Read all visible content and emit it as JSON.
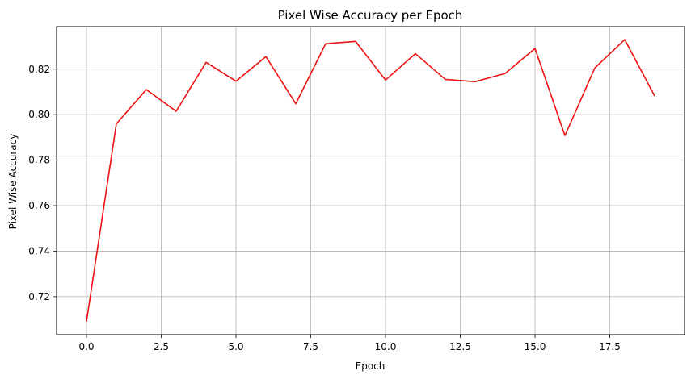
{
  "chart_data": {
    "type": "line",
    "title": "Pixel Wise Accuracy per Epoch",
    "xlabel": "Epoch",
    "ylabel": "Pixel Wise Accuracy",
    "xlim": [
      -1.0,
      20.0
    ],
    "ylim": [
      0.7033,
      0.8387
    ],
    "xticks": [
      0.0,
      2.5,
      5.0,
      7.5,
      10.0,
      12.5,
      15.0,
      17.5
    ],
    "xtick_labels": [
      "0.0",
      "2.5",
      "5.0",
      "7.5",
      "10.0",
      "12.5",
      "15.0",
      "17.5"
    ],
    "yticks": [
      0.72,
      0.74,
      0.76,
      0.78,
      0.8,
      0.82
    ],
    "ytick_labels": [
      "0.72",
      "0.74",
      "0.76",
      "0.78",
      "0.80",
      "0.82"
    ],
    "grid": true,
    "line_color": "#ee1111",
    "series": [
      {
        "x": [
          0,
          1,
          2,
          3,
          4,
          5,
          6,
          7,
          8,
          9,
          10,
          11,
          12,
          13,
          14,
          15,
          16,
          17,
          18,
          19
        ],
        "values": [
          0.709,
          0.796,
          0.811,
          0.8015,
          0.823,
          0.8147,
          0.8255,
          0.8048,
          0.8312,
          0.8322,
          0.8152,
          0.8268,
          0.8155,
          0.8145,
          0.8181,
          0.8291,
          0.7908,
          0.8205,
          0.833,
          0.8082
        ]
      }
    ]
  }
}
